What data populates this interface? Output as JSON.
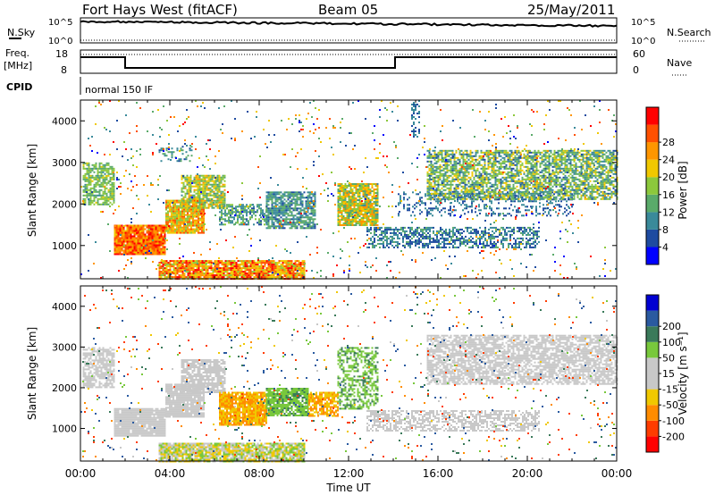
{
  "header": {
    "radar": "Fort Hays West (fitACF)",
    "beam": "Beam 05",
    "date": "25/May/2011"
  },
  "top_panels": {
    "nsky_label": "N.Sky",
    "nsearch_label": "N.Search",
    "nsky_ticks": [
      "10^5",
      "10^0"
    ],
    "freq_label_1": "Freq.",
    "freq_label_2": "[MHz]",
    "freq_ticks": [
      "18",
      "8"
    ],
    "nave_label": "Nave",
    "nave_ticks": [
      "60",
      "0"
    ],
    "cpid_label": "CPID",
    "cpid_value": "normal 150 IF"
  },
  "colors": {
    "power_scale": [
      "#0000ff",
      "#1e4ba0",
      "#3a8a9a",
      "#5aaa6a",
      "#8cc83c",
      "#f0c800",
      "#ff9600",
      "#ff5000",
      "#ff0000"
    ],
    "velocity_scale": [
      "#0000d2",
      "#2a5aa0",
      "#3a7a5a",
      "#78c83c",
      "#c8c8c8",
      "#c8c8c8",
      "#f0c800",
      "#ff8c00",
      "#ff3c00",
      "#ff0000"
    ]
  },
  "chart_data": [
    {
      "type": "heatmap",
      "name": "power",
      "ylabel": "Slant Range [km]",
      "yticks": [
        "1000",
        "2000",
        "3000",
        "4000"
      ],
      "ylim": [
        200,
        4500
      ],
      "xlim_hours": [
        0,
        24
      ],
      "colorbar_label": "Power [dB]",
      "colorbar_ticks": [
        "4",
        "8",
        "12",
        "16",
        "20",
        "24",
        "28"
      ],
      "echo_regions": [
        {
          "t": [
            0.1,
            1.5
          ],
          "r": [
            2000,
            3000
          ],
          "dens": 0.7,
          "v": [
            10,
            18
          ]
        },
        {
          "t": [
            1.5,
            3.8
          ],
          "r": [
            800,
            1500
          ],
          "dens": 0.95,
          "v": [
            20,
            30
          ]
        },
        {
          "t": [
            3.8,
            5.5
          ],
          "r": [
            1300,
            2100
          ],
          "dens": 0.9,
          "v": [
            14,
            26
          ]
        },
        {
          "t": [
            4.5,
            6.5
          ],
          "r": [
            1900,
            2700
          ],
          "dens": 0.8,
          "v": [
            10,
            22
          ]
        },
        {
          "t": [
            3.5,
            5.0
          ],
          "r": [
            3050,
            3400
          ],
          "dens": 0.25,
          "v": [
            6,
            14
          ]
        },
        {
          "t": [
            6.2,
            8.3
          ],
          "r": [
            1500,
            2000
          ],
          "dens": 0.6,
          "v": [
            6,
            16
          ]
        },
        {
          "t": [
            8.3,
            10.5
          ],
          "r": [
            1400,
            2300
          ],
          "dens": 0.75,
          "v": [
            6,
            14
          ]
        },
        {
          "t": [
            3.5,
            10.0
          ],
          "r": [
            200,
            650
          ],
          "dens": 0.9,
          "v": [
            16,
            30
          ]
        },
        {
          "t": [
            11.5,
            13.3
          ],
          "r": [
            1500,
            2500
          ],
          "dens": 0.85,
          "v": [
            10,
            24
          ]
        },
        {
          "t": [
            12.8,
            20.5
          ],
          "r": [
            950,
            1450
          ],
          "dens": 0.55,
          "v": [
            4,
            12
          ]
        },
        {
          "t": [
            14.2,
            22.0
          ],
          "r": [
            1700,
            2300
          ],
          "dens": 0.25,
          "v": [
            4,
            10
          ]
        },
        {
          "t": [
            15.5,
            24.0
          ],
          "r": [
            2100,
            3300
          ],
          "dens": 0.7,
          "v": [
            6,
            20
          ]
        },
        {
          "t": [
            14.8,
            15.2
          ],
          "r": [
            3600,
            4500
          ],
          "dens": 0.35,
          "v": [
            4,
            10
          ]
        },
        {
          "t": [
            0.0,
            24.0
          ],
          "r": [
            200,
            4500
          ],
          "dens": 0.025,
          "v": [
            2,
            30
          ]
        }
      ]
    },
    {
      "type": "heatmap",
      "name": "velocity",
      "ylabel": "Slant Range [km]",
      "yticks": [
        "1000",
        "2000",
        "3000",
        "4000"
      ],
      "ylim": [
        200,
        4500
      ],
      "xlim_hours": [
        0,
        24
      ],
      "xticks": [
        "00:00",
        "04:00",
        "08:00",
        "12:00",
        "16:00",
        "20:00",
        "00:00"
      ],
      "xlabel": "Time UT",
      "colorbar_label": "Velocity [m s⁻¹]",
      "colorbar_ticks": [
        "200",
        "100",
        "50",
        "15",
        "-15",
        "-50",
        "-100",
        "-200"
      ],
      "echo_regions": [
        {
          "t": [
            0.1,
            1.5
          ],
          "r": [
            2000,
            3000
          ],
          "dens": 0.7,
          "v": [
            -15,
            15
          ]
        },
        {
          "t": [
            1.5,
            3.8
          ],
          "r": [
            800,
            1500
          ],
          "dens": 0.95,
          "v": [
            -15,
            15
          ]
        },
        {
          "t": [
            3.8,
            5.5
          ],
          "r": [
            1300,
            2100
          ],
          "dens": 0.9,
          "v": [
            -15,
            15
          ]
        },
        {
          "t": [
            4.5,
            6.5
          ],
          "r": [
            1900,
            2700
          ],
          "dens": 0.8,
          "v": [
            -15,
            15
          ]
        },
        {
          "t": [
            6.2,
            8.3
          ],
          "r": [
            1100,
            1900
          ],
          "dens": 0.9,
          "v": [
            -80,
            -20
          ]
        },
        {
          "t": [
            8.3,
            10.2
          ],
          "r": [
            1300,
            2000
          ],
          "dens": 0.85,
          "v": [
            20,
            60
          ]
        },
        {
          "t": [
            10.2,
            11.5
          ],
          "r": [
            1300,
            1900
          ],
          "dens": 0.8,
          "v": [
            -80,
            -20
          ]
        },
        {
          "t": [
            3.5,
            10.0
          ],
          "r": [
            200,
            650
          ],
          "dens": 0.9,
          "v": [
            -40,
            40
          ]
        },
        {
          "t": [
            11.5,
            13.3
          ],
          "r": [
            1500,
            3000
          ],
          "dens": 0.5,
          "v": [
            20,
            60
          ]
        },
        {
          "t": [
            12.8,
            20.5
          ],
          "r": [
            950,
            1450
          ],
          "dens": 0.55,
          "v": [
            -15,
            15
          ]
        },
        {
          "t": [
            15.5,
            24.0
          ],
          "r": [
            2100,
            3300
          ],
          "dens": 0.7,
          "v": [
            -15,
            15
          ]
        },
        {
          "t": [
            0.0,
            24.0
          ],
          "r": [
            200,
            4500
          ],
          "dens": 0.025,
          "v": [
            -200,
            200
          ]
        }
      ]
    }
  ]
}
